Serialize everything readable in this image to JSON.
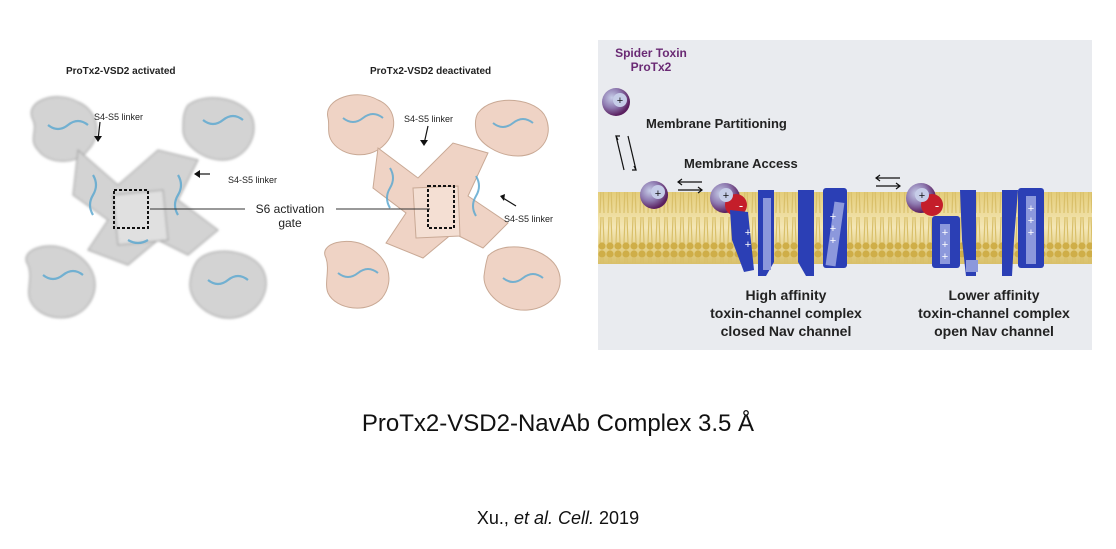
{
  "left_panel": {
    "title": "ProTx2-VSD2 activated",
    "labels": [
      "S4-S5 linker",
      "S4-S5 linker"
    ]
  },
  "middle_panel": {
    "title": "ProTx2-VSD2 deactivated",
    "labels": [
      "S4-S5 linker",
      "S4-S5 linker"
    ]
  },
  "center_label": {
    "line1": "S6 activation",
    "line2": "gate"
  },
  "schematic": {
    "toxin_label_line1": "Spider Toxin",
    "toxin_label_line2": "ProTx2",
    "membrane_partitioning": "Membrane Partitioning",
    "membrane_access": "Membrane Access",
    "left_caption": [
      "High affinity",
      "toxin-channel complex",
      "closed Nav channel"
    ],
    "right_caption": [
      "Lower affinity",
      "toxin-channel complex",
      "open Nav channel"
    ],
    "colors": {
      "toxin_purple": "#6a2a74",
      "toxin_red": "#c41e2a",
      "channel_blue": "#2b3fb5",
      "membrane_tan": "#d9c06a",
      "background": "#e9ebef"
    }
  },
  "title": "ProTx2-VSD2-NavAb  Complex 3.5 Å",
  "citation": {
    "authors": "Xu.,",
    "etal": "et al.",
    "journal": "Cell.",
    "year": "2019"
  }
}
